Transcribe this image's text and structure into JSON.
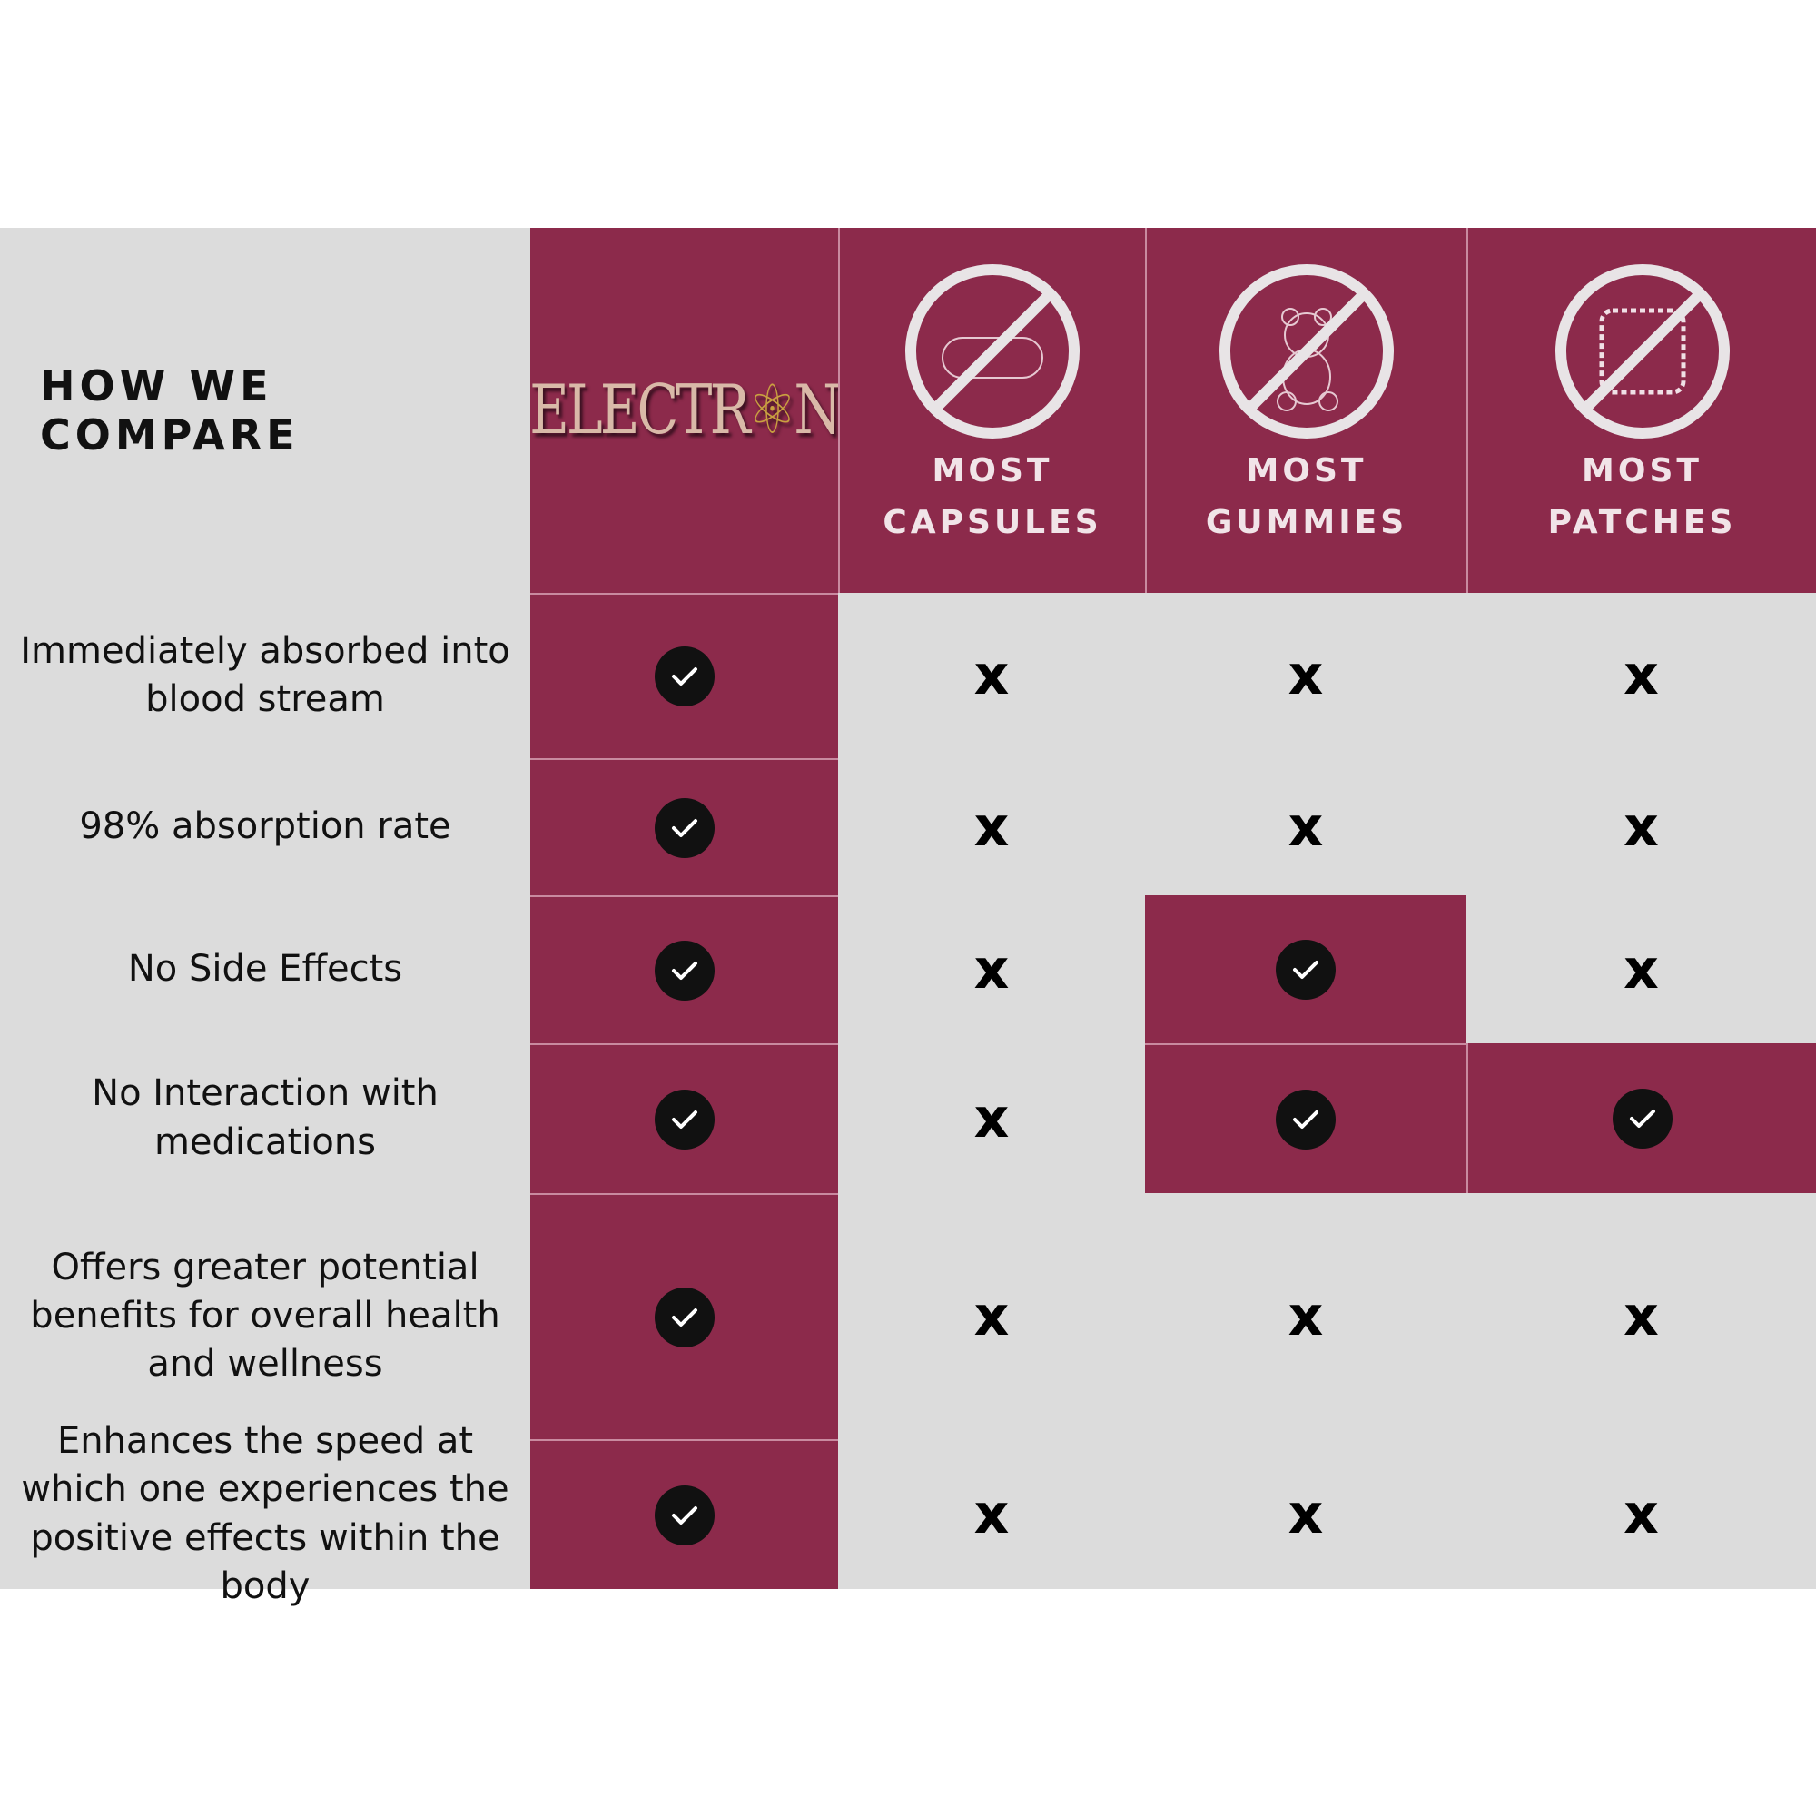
{
  "heading": "HOW WE COMPARE",
  "brand": {
    "logo_text": "ELECTRON"
  },
  "columns": [
    {
      "line1": "MOST",
      "line2": "CAPSULES",
      "icon": "no-capsule-icon"
    },
    {
      "line1": "MOST",
      "line2": "GUMMIES",
      "icon": "no-gummy-bear-icon"
    },
    {
      "line1": "MOST",
      "line2": "PATCHES",
      "icon": "no-patch-icon"
    }
  ],
  "colors": {
    "accent": "#8c2a4b",
    "neutral": "#dcdcdc"
  },
  "rows": [
    {
      "label": "Immediately absorbed into blood stream",
      "values": [
        true,
        false,
        false,
        false
      ]
    },
    {
      "label": "98% absorption rate",
      "values": [
        true,
        false,
        false,
        false
      ]
    },
    {
      "label": "No Side Effects",
      "values": [
        true,
        false,
        true,
        false
      ]
    },
    {
      "label": "No Interaction with medications",
      "values": [
        true,
        false,
        true,
        true
      ]
    },
    {
      "label": "Offers greater potential benefits for overall health and wellness",
      "values": [
        true,
        false,
        false,
        false
      ]
    },
    {
      "label": "Enhances the speed at which one experiences the positive effects within the body",
      "values": [
        true,
        false,
        false,
        false
      ]
    }
  ],
  "marks": {
    "yes": "check-icon",
    "no": "x-icon",
    "no_text": "x"
  }
}
